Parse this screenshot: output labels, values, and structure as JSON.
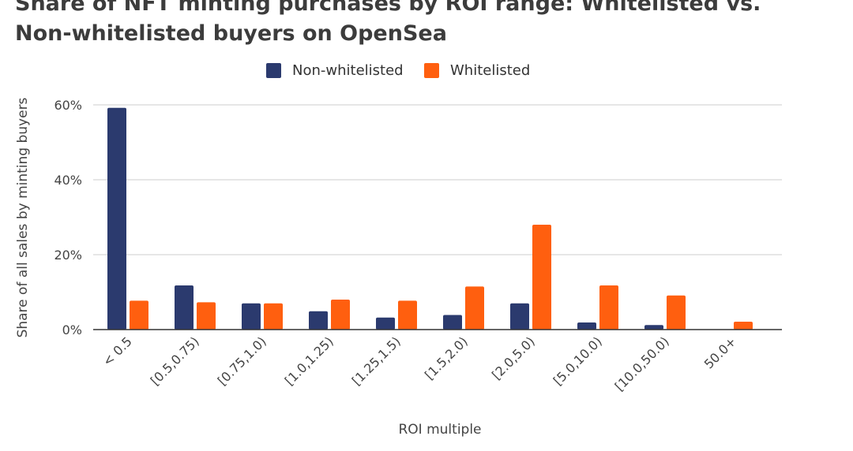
{
  "title": {
    "line1": "Share of NFT minting purchases by ROI range: Whitelisted vs.",
    "line2": "Non-whitelisted buyers on OpenSea"
  },
  "chart_data": {
    "type": "bar",
    "categories": [
      "< 0.5",
      "[0.5,0.75)",
      "[0.75,1.0)",
      "[1.0,1.25)",
      "[1.25,1.5)",
      "[1.5,2.0)",
      "[2.0,5.0)",
      "[5.0,10.0)",
      "[10.0,50.0)",
      "50.0+"
    ],
    "series": [
      {
        "name": "Non-whitelisted",
        "color": "#2b3a6e",
        "values": [
          59.2,
          11.8,
          7.0,
          4.9,
          3.2,
          3.9,
          7.0,
          1.9,
          1.2,
          0
        ]
      },
      {
        "name": "Whitelisted",
        "color": "#ff5f0f",
        "values": [
          7.7,
          7.3,
          7.0,
          8.0,
          7.7,
          11.5,
          28.0,
          11.8,
          9.1,
          2.1
        ]
      }
    ],
    "xlabel": "ROI multiple",
    "ylabel": "Share of all sales by minting buyers",
    "ylim": [
      0,
      60
    ],
    "yticks": [
      {
        "value": 0,
        "label": "0%"
      },
      {
        "value": 20,
        "label": "20%"
      },
      {
        "value": 40,
        "label": "40%"
      },
      {
        "value": 60,
        "label": "60%"
      }
    ],
    "grid": true,
    "legend_position": "top"
  }
}
